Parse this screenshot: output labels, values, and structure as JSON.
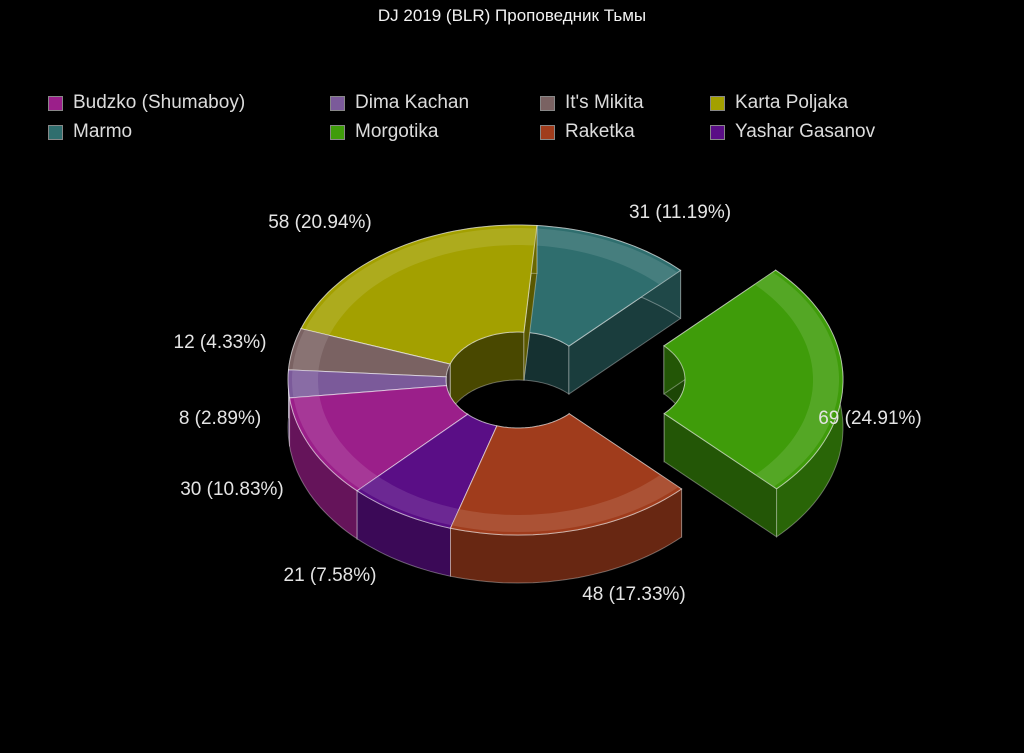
{
  "chart_data": {
    "type": "pie",
    "variant": "3d-donut",
    "title": "DJ 2019 (BLR) Проповедник Тьмы",
    "legend_position": "top",
    "slices": [
      {
        "name": "Morgotika",
        "value": 69,
        "label": "69 (24.91%)",
        "color": "#3f9c0a",
        "exploded": true
      },
      {
        "name": "Raketka",
        "value": 48,
        "label": "48 (17.33%)",
        "color": "#a03c1c"
      },
      {
        "name": "Yashar Gasanov",
        "value": 21,
        "label": "21 (7.58%)",
        "color": "#5a0e86"
      },
      {
        "name": "Budzko (Shumaboy)",
        "value": 30,
        "label": "30 (10.83%)",
        "color": "#9b1f8a"
      },
      {
        "name": "Dima Kachan",
        "value": 8,
        "label": "8 (2.89%)",
        "color": "#7b5a9a"
      },
      {
        "name": "It's Mikita",
        "value": 12,
        "label": "12 (4.33%)",
        "color": "#7a6262"
      },
      {
        "name": "Karta Poljaka",
        "value": 58,
        "label": "58 (20.94%)",
        "color": "#a3a000"
      },
      {
        "name": "Marmo",
        "value": 31,
        "label": "31 (11.19%)",
        "color": "#2f6e6e"
      }
    ],
    "legend_order": [
      "Budzko (Shumaboy)",
      "Dima Kachan",
      "It's Mikita",
      "Karta Poljaka",
      "Marmo",
      "Morgotika",
      "Raketka",
      "Yashar Gasanov"
    ]
  }
}
